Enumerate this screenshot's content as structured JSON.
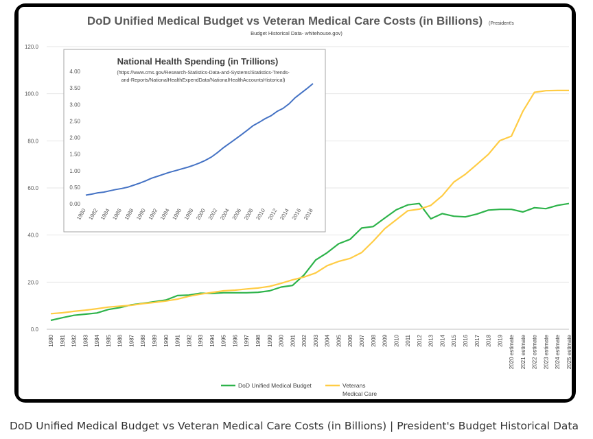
{
  "caption": "DoD Unified Medical Budget vs Veteran Medical Care Costs (in Billions) | President's Budget Historical Data",
  "chart_data": [
    {
      "type": "line",
      "title": "DoD Unified Medical Budget vs Veteran Medical Care Costs (in Billions)",
      "subtitle": "(President's Budget Historical Data- whitehouse.gov)",
      "subtitle_line1": "(President's",
      "subtitle_line2": "Budget Historical Data-  whitehouse.gov)",
      "xlabel": "",
      "ylabel": "",
      "ylim": [
        0,
        120
      ],
      "y_ticks": [
        "0.0",
        "20.0",
        "40.0",
        "60.0",
        "80.0",
        "100.0",
        "120.0"
      ],
      "grid": true,
      "legend_position": "bottom",
      "categories": [
        "1980",
        "1981",
        "1982",
        "1983",
        "1984",
        "1985",
        "1986",
        "1987",
        "1988",
        "1989",
        "1990",
        "1991",
        "1992",
        "1993",
        "1994",
        "1995",
        "1996",
        "1997",
        "1998",
        "1999",
        "2000",
        "2001",
        "2002",
        "2003",
        "2004",
        "2005",
        "2006",
        "2007",
        "2008",
        "2009",
        "2010",
        "2011",
        "2012",
        "2013",
        "2014",
        "2015",
        "2016",
        "2017",
        "2018",
        "2019",
        "2020 estimate",
        "2021 estimate",
        "2022 estimate",
        "2023 estimate",
        "2024 estimate",
        "2025 estimate"
      ],
      "series": [
        {
          "name": "DoD Unified Medical Budget",
          "color": "#2db34a",
          "values": [
            3.8,
            4.9,
            5.9,
            6.4,
            6.9,
            8.4,
            9.2,
            10.4,
            11.0,
            11.7,
            12.4,
            14.3,
            14.5,
            15.3,
            15.2,
            15.5,
            15.5,
            15.5,
            15.7,
            16.3,
            17.9,
            18.6,
            23.1,
            29.4,
            32.5,
            36.3,
            38.2,
            43.0,
            43.6,
            47.2,
            50.7,
            52.8,
            53.4,
            46.9,
            49.1,
            48.0,
            47.7,
            48.9,
            50.6,
            50.9,
            50.9,
            49.8,
            51.6,
            51.2,
            52.6,
            53.4
          ]
        },
        {
          "name": "Veterans\nMedical Care",
          "color": "#ffcc44",
          "values": [
            6.6,
            7.0,
            7.6,
            8.1,
            8.7,
            9.4,
            9.8,
            10.2,
            10.9,
            11.4,
            12.0,
            12.8,
            14.0,
            14.9,
            15.6,
            16.3,
            16.6,
            17.1,
            17.5,
            18.2,
            19.5,
            21.0,
            22.2,
            23.9,
            27.0,
            28.8,
            30.1,
            32.6,
            37.4,
            42.7,
            46.5,
            50.3,
            51.0,
            52.6,
            56.7,
            62.5,
            65.8,
            70.0,
            74.3,
            80.1,
            82.0,
            92.6,
            100.6,
            101.3,
            101.4,
            101.4
          ]
        }
      ]
    },
    {
      "type": "line",
      "title": "National Health Spending (in Trillions)",
      "subtitle_line1": "(https://www.cms.gov/Research-Statistics-Data-and-Systems/Statistics-Trends-",
      "subtitle_line2": "and-Reports/NationalHealthExpendData/NationalHealthAccountsHistorical)",
      "ylim": [
        0,
        4
      ],
      "y_ticks": [
        "0.00",
        "0.50",
        "1.00",
        "1.50",
        "2.00",
        "2.50",
        "3.00",
        "3.50",
        "4.00"
      ],
      "x_ticks": [
        "1980",
        "1982",
        "1984",
        "1986",
        "1988",
        "1990",
        "1992",
        "1994",
        "1996",
        "1998",
        "2000",
        "2002",
        "2004",
        "2006",
        "2008",
        "2010",
        "2012",
        "2014",
        "2016",
        "2018"
      ],
      "grid": false,
      "series": [
        {
          "name": "",
          "color": "#4472c4",
          "x": [
            1980,
            1981,
            1982,
            1983,
            1984,
            1985,
            1986,
            1987,
            1988,
            1989,
            1990,
            1991,
            1992,
            1993,
            1994,
            1995,
            1996,
            1997,
            1998,
            1999,
            2000,
            2001,
            2002,
            2003,
            2004,
            2005,
            2006,
            2007,
            2008,
            2009,
            2010,
            2011,
            2012,
            2013,
            2014,
            2015,
            2016,
            2017,
            2018
          ],
          "values": [
            0.26,
            0.29,
            0.33,
            0.35,
            0.39,
            0.43,
            0.46,
            0.5,
            0.56,
            0.62,
            0.69,
            0.77,
            0.83,
            0.89,
            0.95,
            1.0,
            1.05,
            1.1,
            1.16,
            1.23,
            1.31,
            1.41,
            1.54,
            1.69,
            1.82,
            1.95,
            2.08,
            2.22,
            2.36,
            2.46,
            2.57,
            2.66,
            2.79,
            2.88,
            3.02,
            3.2,
            3.34,
            3.48,
            3.63
          ]
        }
      ]
    }
  ]
}
